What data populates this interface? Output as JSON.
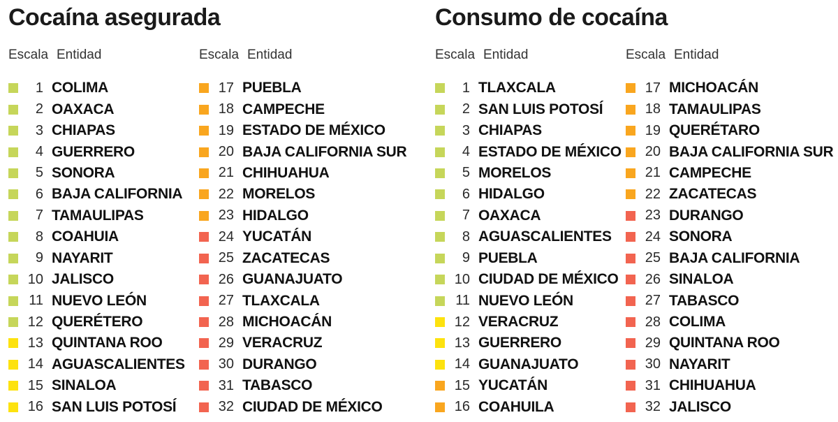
{
  "colors": {
    "green": "#c6d65a",
    "yellow": "#fde20f",
    "orange": "#f9a61f",
    "red": "#f26450"
  },
  "panels": [
    {
      "title": "Cocaína asegurada",
      "header": {
        "scale": "Escala",
        "entity": "Entidad"
      },
      "columns": [
        [
          {
            "rank": "1",
            "name": "COLIMA",
            "color": "green"
          },
          {
            "rank": "2",
            "name": "OAXACA",
            "color": "green"
          },
          {
            "rank": "3",
            "name": "CHIAPAS",
            "color": "green"
          },
          {
            "rank": "4",
            "name": "GUERRERO",
            "color": "green"
          },
          {
            "rank": "5",
            "name": "SONORA",
            "color": "green"
          },
          {
            "rank": "6",
            "name": "BAJA CALIFORNIA",
            "color": "green"
          },
          {
            "rank": "7",
            "name": "TAMAULIPAS",
            "color": "green"
          },
          {
            "rank": "8",
            "name": "COAHUIA",
            "color": "green"
          },
          {
            "rank": "9",
            "name": "NAYARIT",
            "color": "green"
          },
          {
            "rank": "10",
            "name": "JALISCO",
            "color": "green"
          },
          {
            "rank": "11",
            "name": "NUEVO LEÓN",
            "color": "green"
          },
          {
            "rank": "12",
            "name": "QUERÉTERO",
            "color": "green"
          },
          {
            "rank": "13",
            "name": "QUINTANA ROO",
            "color": "yellow"
          },
          {
            "rank": "14",
            "name": "AGUASCALIENTES",
            "color": "yellow"
          },
          {
            "rank": "15",
            "name": "SINALOA",
            "color": "yellow"
          },
          {
            "rank": "16",
            "name": "SAN LUIS POTOSÍ",
            "color": "yellow"
          }
        ],
        [
          {
            "rank": "17",
            "name": "PUEBLA",
            "color": "orange"
          },
          {
            "rank": "18",
            "name": "CAMPECHE",
            "color": "orange"
          },
          {
            "rank": "19",
            "name": "ESTADO DE MÉXICO",
            "color": "orange"
          },
          {
            "rank": "20",
            "name": "BAJA CALIFORNIA SUR",
            "color": "orange"
          },
          {
            "rank": "21",
            "name": "CHIHUAHUA",
            "color": "orange"
          },
          {
            "rank": "22",
            "name": "MORELOS",
            "color": "orange"
          },
          {
            "rank": "23",
            "name": "HIDALGO",
            "color": "orange"
          },
          {
            "rank": "24",
            "name": "YUCATÁN",
            "color": "red"
          },
          {
            "rank": "25",
            "name": "ZACATECAS",
            "color": "red"
          },
          {
            "rank": "26",
            "name": "GUANAJUATO",
            "color": "red"
          },
          {
            "rank": "27",
            "name": "TLAXCALA",
            "color": "red"
          },
          {
            "rank": "28",
            "name": "MICHOACÁN",
            "color": "red"
          },
          {
            "rank": "29",
            "name": "VERACRUZ",
            "color": "red"
          },
          {
            "rank": "30",
            "name": "DURANGO",
            "color": "red"
          },
          {
            "rank": "31",
            "name": "TABASCO",
            "color": "red"
          },
          {
            "rank": "32",
            "name": "CIUDAD DE MÉXICO",
            "color": "red"
          }
        ]
      ]
    },
    {
      "title": "Consumo de cocaína",
      "header": {
        "scale": "Escala",
        "entity": "Entidad"
      },
      "columns": [
        [
          {
            "rank": "1",
            "name": "TLAXCALA",
            "color": "green"
          },
          {
            "rank": "2",
            "name": "SAN LUIS POTOSÍ",
            "color": "green"
          },
          {
            "rank": "3",
            "name": "CHIAPAS",
            "color": "green"
          },
          {
            "rank": "4",
            "name": "ESTADO DE MÉXICO",
            "color": "green"
          },
          {
            "rank": "5",
            "name": "MORELOS",
            "color": "green"
          },
          {
            "rank": "6",
            "name": "HIDALGO",
            "color": "green"
          },
          {
            "rank": "7",
            "name": "OAXACA",
            "color": "green"
          },
          {
            "rank": "8",
            "name": "AGUASCALIENTES",
            "color": "green"
          },
          {
            "rank": "9",
            "name": "PUEBLA",
            "color": "green"
          },
          {
            "rank": "10",
            "name": "CIUDAD DE MÉXICO",
            "color": "green"
          },
          {
            "rank": "11",
            "name": "NUEVO LEÓN",
            "color": "green"
          },
          {
            "rank": "12",
            "name": "VERACRUZ",
            "color": "yellow"
          },
          {
            "rank": "13",
            "name": "GUERRERO",
            "color": "yellow"
          },
          {
            "rank": "14",
            "name": "GUANAJUATO",
            "color": "yellow"
          },
          {
            "rank": "15",
            "name": "YUCATÁN",
            "color": "orange"
          },
          {
            "rank": "16",
            "name": "COAHUILA",
            "color": "orange"
          }
        ],
        [
          {
            "rank": "17",
            "name": "MICHOACÁN",
            "color": "orange"
          },
          {
            "rank": "18",
            "name": "TAMAULIPAS",
            "color": "orange"
          },
          {
            "rank": "19",
            "name": "QUERÉTARO",
            "color": "orange"
          },
          {
            "rank": "20",
            "name": "BAJA CALIFORNIA SUR",
            "color": "orange"
          },
          {
            "rank": "21",
            "name": "CAMPECHE",
            "color": "orange"
          },
          {
            "rank": "22",
            "name": "ZACATECAS",
            "color": "orange"
          },
          {
            "rank": "23",
            "name": "DURANGO",
            "color": "red"
          },
          {
            "rank": "24",
            "name": "SONORA",
            "color": "red"
          },
          {
            "rank": "25",
            "name": "BAJA CALIFORNIA",
            "color": "red"
          },
          {
            "rank": "26",
            "name": "SINALOA",
            "color": "red"
          },
          {
            "rank": "27",
            "name": "TABASCO",
            "color": "red"
          },
          {
            "rank": "28",
            "name": "COLIMA",
            "color": "red"
          },
          {
            "rank": "29",
            "name": "QUINTANA ROO",
            "color": "red"
          },
          {
            "rank": "30",
            "name": "NAYARIT",
            "color": "red"
          },
          {
            "rank": "31",
            "name": "CHIHUAHUA",
            "color": "red"
          },
          {
            "rank": "32",
            "name": "JALISCO",
            "color": "red"
          }
        ]
      ]
    }
  ]
}
